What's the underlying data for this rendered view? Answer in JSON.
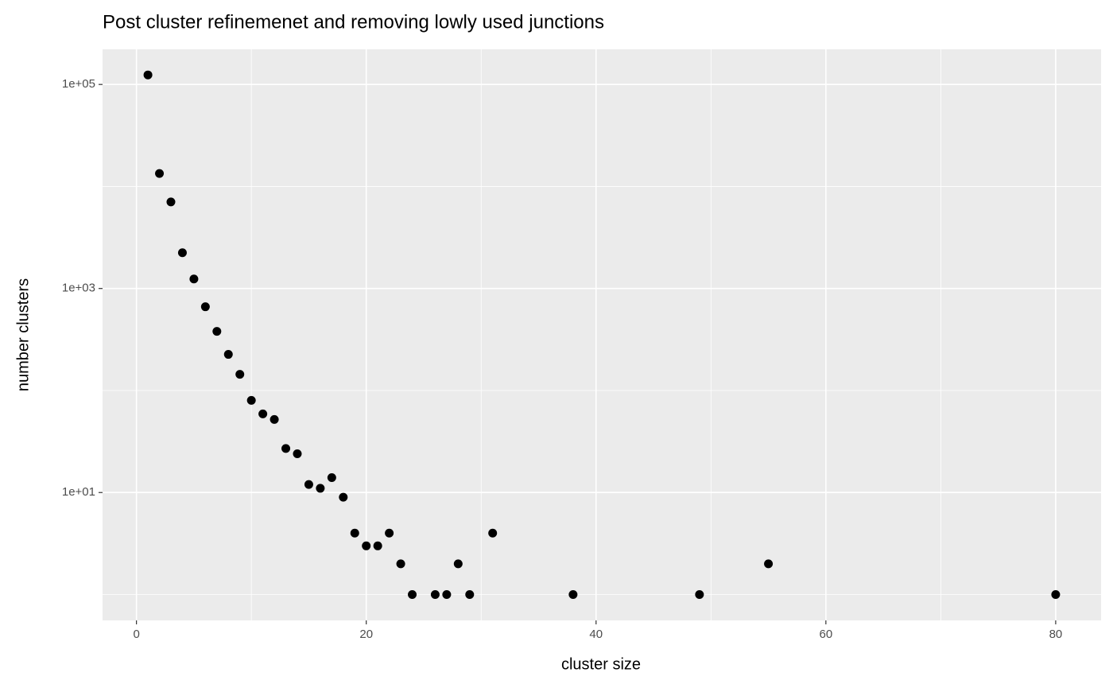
{
  "chart_data": {
    "type": "scatter",
    "title": "Post cluster refinemenet and removing lowly used junctions",
    "x_label": "cluster size",
    "y_label": "number clusters",
    "x": [
      1,
      2,
      3,
      4,
      5,
      6,
      7,
      8,
      9,
      10,
      11,
      12,
      13,
      14,
      15,
      16,
      17,
      18,
      19,
      20,
      21,
      22,
      23,
      24,
      26,
      27,
      28,
      29,
      31,
      38,
      49,
      55,
      80
    ],
    "values": [
      124000,
      13400,
      7050,
      2240,
      1240,
      662,
      380,
      226,
      144,
      80,
      59,
      52,
      27,
      24,
      12,
      11,
      14,
      9,
      4,
      3,
      3,
      4,
      2,
      1,
      1,
      1,
      2,
      1,
      4,
      1,
      1,
      2,
      1
    ],
    "color": "#000000",
    "xlim": [
      -2.95,
      83.95
    ],
    "xticks": [
      0,
      20,
      40,
      60,
      80
    ],
    "minor_xticks": [
      10,
      30,
      50,
      70
    ],
    "ylim": [
      0.558,
      221000
    ],
    "yticks": [
      {
        "value": 10,
        "label": "1e+01"
      },
      {
        "value": 1000,
        "label": "1e+03"
      },
      {
        "value": 100000,
        "label": "1e+05"
      }
    ],
    "minor_yticks": [
      1,
      100,
      10000
    ],
    "y_log": true,
    "grid": true
  }
}
